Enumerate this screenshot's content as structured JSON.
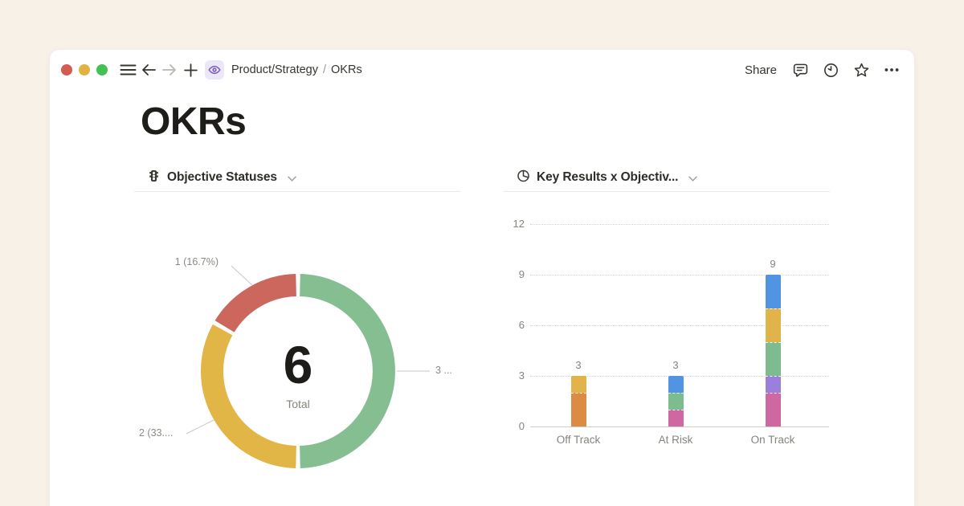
{
  "window": {
    "traffic_lights": [
      "close",
      "minimize",
      "zoom"
    ],
    "breadcrumb": {
      "parent": "Product/Strategy",
      "separator": "/",
      "current": "OKRs"
    },
    "share_label": "Share"
  },
  "page": {
    "title": "OKRs"
  },
  "icons": {
    "hamburger-icon": "three horizontal lines",
    "back-arrow-icon": "left arrow",
    "forward-arrow-icon": "right arrow (disabled)",
    "plus-icon": "+",
    "page-eye-icon": "purple eye in lavender square",
    "comment-icon": "speech bubble with lines",
    "clock-icon": "clock face",
    "star-icon": "star outline",
    "ellipsis-icon": "three dots",
    "chevron-down-icon": "small down chevron",
    "donut-header-icon": "traffic light",
    "bar-header-icon": "pie chart"
  },
  "colors": {
    "background": "#F7F1E8",
    "card": "#FFFFFF",
    "text_dark": "#37352F",
    "text_gray": "#86847E",
    "disabled_gray": "#B9B6B1",
    "divider": "#ECEAE6",
    "gridline": "#D8D6D0",
    "axis_line": "#CFCDC7",
    "leader_line": "#C9C7C2",
    "traffic_red": "#D25B52",
    "traffic_yellow": "#E2B340",
    "traffic_green": "#45C052",
    "accent_purple": "#7A5CC0",
    "icon_lavender_bg": "#ECE7F8"
  },
  "chart_data": [
    {
      "type": "donut",
      "title": "Objective Statuses",
      "total": 6,
      "center_label": "Total",
      "start_angle_deg": 0,
      "direction": "clockwise",
      "slices": [
        {
          "label": "3 ...",
          "value": 3,
          "percent": 50.0,
          "color": "#85BE90"
        },
        {
          "label": "2 (33....",
          "value": 2,
          "percent": 33.3,
          "color": "#E1B546"
        },
        {
          "label": "1 (16.7%)",
          "value": 1,
          "percent": 16.7,
          "color": "#CB675C"
        }
      ]
    },
    {
      "type": "stacked-bar",
      "title": "Key Results x Objectiv...",
      "categories": [
        "Off Track",
        "At Risk",
        "On Track"
      ],
      "totals": [
        3,
        3,
        9
      ],
      "y_ticks": [
        0,
        3,
        6,
        9,
        12
      ],
      "ylim": [
        0,
        12
      ],
      "grid": "dotted-horizontal",
      "bars": [
        {
          "category": "Off Track",
          "total": 3,
          "segments_bottom_to_top": [
            {
              "value": 2,
              "color": "#DB8B43"
            },
            {
              "value": 1,
              "color": "#E0B44A"
            }
          ]
        },
        {
          "category": "At Risk",
          "total": 3,
          "segments_bottom_to_top": [
            {
              "value": 1,
              "color": "#CE67A2"
            },
            {
              "value": 1,
              "color": "#7CBC8E"
            },
            {
              "value": 1,
              "color": "#5094E2"
            }
          ]
        },
        {
          "category": "On Track",
          "total": 9,
          "segments_bottom_to_top": [
            {
              "value": 2,
              "color": "#CE67A2"
            },
            {
              "value": 1,
              "color": "#9A7FDB"
            },
            {
              "value": 2,
              "color": "#7CBC8E"
            },
            {
              "value": 2,
              "color": "#E0B44A"
            },
            {
              "value": 2,
              "color": "#5094E2"
            }
          ]
        }
      ]
    }
  ]
}
